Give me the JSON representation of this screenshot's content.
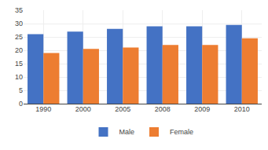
{
  "chart_data": {
    "type": "bar",
    "categories": [
      "1990",
      "2000",
      "2005",
      "2008",
      "2009",
      "2010"
    ],
    "series": [
      {
        "name": "Male",
        "color": "#4472C4",
        "values": [
          26,
          27,
          28,
          29,
          29,
          29.5
        ]
      },
      {
        "name": "Female",
        "color": "#ED7D31",
        "values": [
          19,
          20.5,
          21,
          22,
          22,
          24.5
        ]
      }
    ],
    "ylim": [
      0,
      35
    ],
    "yticks": [
      0,
      5,
      10,
      15,
      20,
      25,
      30,
      35
    ],
    "grid": true,
    "legend": "bottom"
  }
}
